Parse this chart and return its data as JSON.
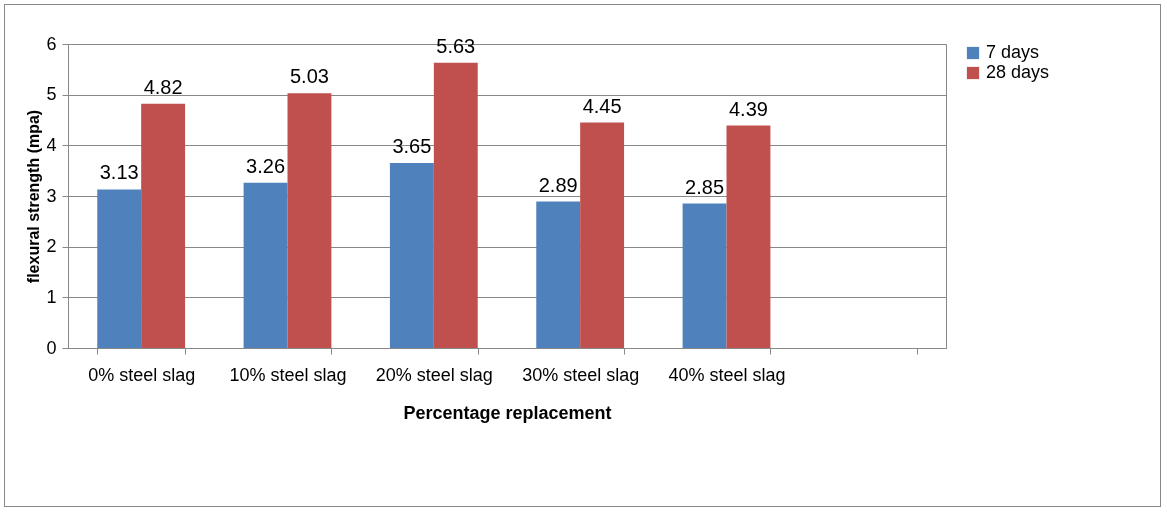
{
  "chart_data": {
    "type": "bar",
    "xlabel": "Percentage replacement",
    "ylabel": "flexural strength (mpa)",
    "categories": [
      "0% steel slag",
      "10% steel slag",
      "20% steel slag",
      "30% steel slag",
      "40% steel slag",
      null
    ],
    "series": [
      {
        "name": "7 days",
        "color": "#4f81bd",
        "values": [
          3.13,
          3.26,
          3.65,
          2.89,
          2.85,
          null
        ]
      },
      {
        "name": "28 days",
        "color": "#c0504d",
        "values": [
          4.82,
          5.03,
          5.63,
          4.45,
          4.39,
          null
        ]
      }
    ],
    "ylim": [
      0,
      6
    ],
    "yticks": [
      0,
      1,
      2,
      3,
      4,
      5,
      6
    ],
    "grid": "y",
    "legend": "right",
    "data_labels": true
  }
}
